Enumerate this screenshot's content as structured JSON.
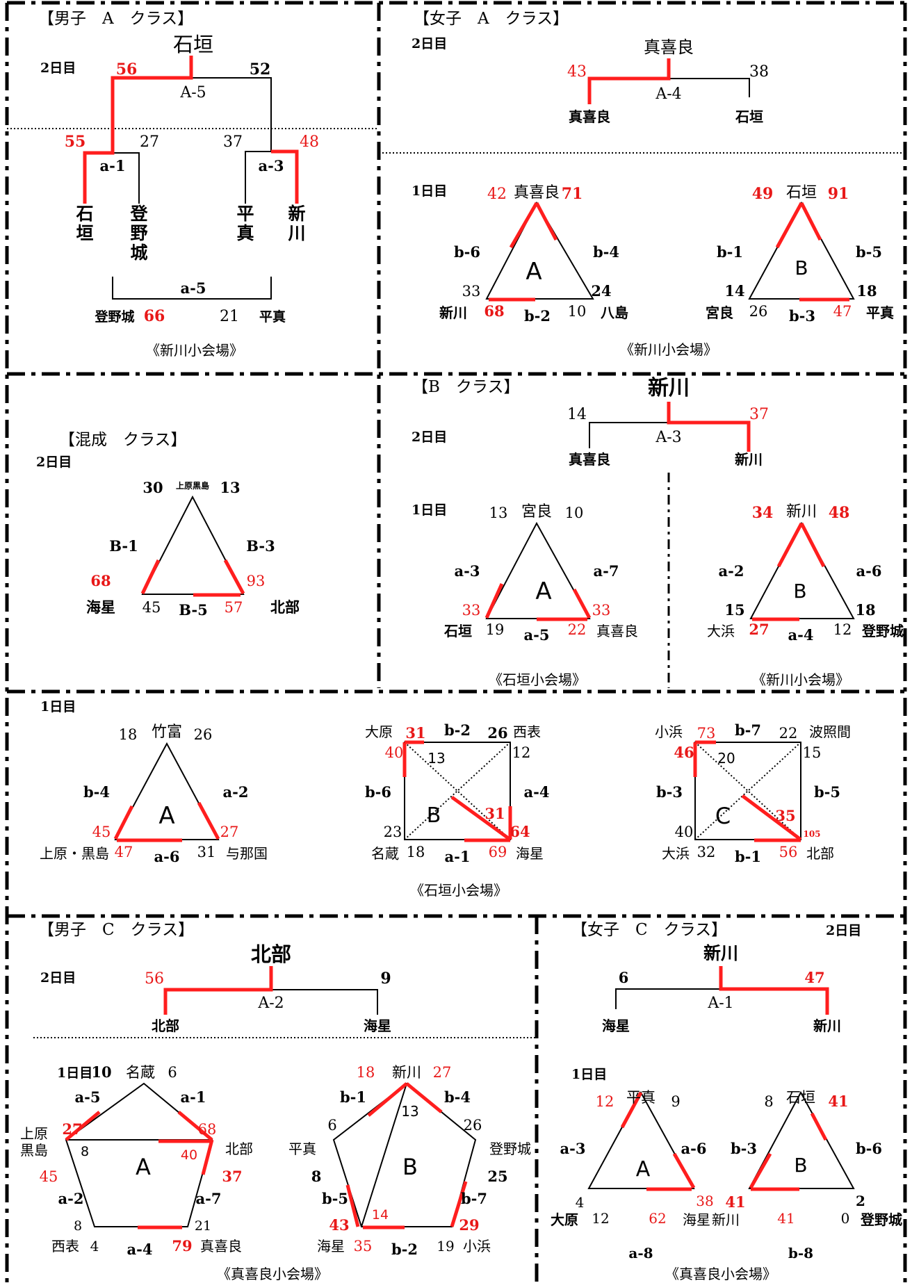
{
  "bA": {
    "title": "【男子　A　クラス】",
    "champ": "石垣",
    "day2": "2日目",
    "sL": "56",
    "sR": "52",
    "game": "A-5",
    "s1": "55",
    "s2": "27",
    "s3": "37",
    "s4": "48",
    "g1": "a-1",
    "g2": "a-3",
    "t1": "石",
    "t1b": "垣",
    "t2": "登",
    "t2b": "野",
    "t2c": "城",
    "t3": "平",
    "t3b": "真",
    "t4": "新",
    "t4b": "川",
    "g5": "a-5",
    "g5l": "登野城",
    "g5s1": "66",
    "g5s2": "21",
    "g5r": "平真",
    "venue": "《新川小会場》"
  },
  "gA": {
    "title": "【女子　A　クラス】",
    "day2": "2日目",
    "champ": "真喜良",
    "sL": "43",
    "sR": "38",
    "game": "A-4",
    "tL": "真喜良",
    "tR": "石垣",
    "day1": "1日目",
    "venue": "《新川小会場》",
    "A": {
      "top": "真喜良",
      "ts1": "42",
      "ts2": "71",
      "l": "b-6",
      "r": "b-4",
      "b": "b-2",
      "bl": "新川",
      "bls1": "33",
      "bls2": "68",
      "br": "八島",
      "brs1": "24",
      "brs2": "10",
      "c": "A"
    },
    "B": {
      "top": "石垣",
      "ts1": "49",
      "ts2": "91",
      "l": "b-1",
      "r": "b-5",
      "b": "b-3",
      "bl": "宮良",
      "bls1": "14",
      "bls2": "26",
      "br": "平真",
      "brs1": "18",
      "brs2": "47",
      "c": "B"
    }
  },
  "mix": {
    "title": "【混成　クラス】",
    "day2": "2日目",
    "top": "上原黒島",
    "ts1": "30",
    "ts2": "13",
    "l": "B-1",
    "r": "B-3",
    "b": "B-5",
    "bl": "海星",
    "bls1": "68",
    "bls2": "45",
    "br": "北部",
    "brs1": "93",
    "brs2": "57"
  },
  "bB": {
    "title": "【B　クラス】",
    "champ": "新川",
    "sL": "14",
    "sR": "37",
    "game": "A-3",
    "day2": "2日目",
    "tL": "真喜良",
    "tR": "新川",
    "day1": "1日目",
    "A": {
      "top": "宮良",
      "ts1": "13",
      "ts2": "10",
      "l": "a-3",
      "r": "a-7",
      "b": "a-5",
      "bl": "石垣",
      "bls1": "33",
      "bls2": "19",
      "br": "真喜良",
      "brs1": "33",
      "brs2": "22",
      "c": "A",
      "venue": "《石垣小会場》"
    },
    "B": {
      "top": "新川",
      "ts1": "34",
      "ts2": "48",
      "l": "a-2",
      "r": "a-6",
      "b": "a-4",
      "bl": "大浜",
      "bls1": "15",
      "bls2": "27",
      "br": "登野城",
      "brs1": "18",
      "brs2": "12",
      "c": "B",
      "venue": "《新川小会場》"
    }
  },
  "mid": {
    "day1": "1日目",
    "venue": "《石垣小会場》",
    "A": {
      "top": "竹富",
      "ts1": "18",
      "ts2": "26",
      "l": "b-4",
      "r": "a-2",
      "b": "a-6",
      "bl": "上原・黒島",
      "bls1": "45",
      "bls2": "47",
      "br": "与那国",
      "brs1": "27",
      "brs2": "31",
      "c": "A"
    },
    "B": {
      "tl": "大原",
      "tr": "西表",
      "bl": "名蔵",
      "br": "海星",
      "top": "b-2",
      "l": "b-6",
      "r": "a-4",
      "b": "a-1",
      "c": "B",
      "tls1": "31",
      "tls2": "40",
      "d1": "13",
      "trs1": "26",
      "trs2": "12",
      "bls1": "23",
      "bls2": "18",
      "brs1": "69",
      "brs2": "64",
      "d2": "31"
    },
    "C": {
      "tl": "小浜",
      "tr": "波照間",
      "bl": "大浜",
      "br": "北部",
      "top": "b-7",
      "l": "b-3",
      "r": "b-5",
      "b": "b-1",
      "c": "C",
      "tls1": "73",
      "tls2": "46",
      "d1": "20",
      "trs1": "22",
      "trs2": "15",
      "bls1": "40",
      "bls2": "32",
      "brs1": "56",
      "brs2": "105",
      "d2": "35"
    }
  },
  "bC": {
    "title": "【男子　C　クラス】",
    "champ": "北部",
    "day2": "2日目",
    "sL": "56",
    "sR": "9",
    "game": "A-2",
    "tL": "北部",
    "tR": "海星",
    "day1": "1日目",
    "venue": "《真喜良小会場》",
    "A": {
      "top": "名蔵",
      "ts1": "10",
      "ts2": "6",
      "ul": "a-5",
      "ur": "a-1",
      "l": "上原",
      "l2": "黒島",
      "r": "北部",
      "bl": "西表",
      "br": "真喜良",
      "ls1": "27",
      "ls2": "45",
      "rs1": "68",
      "rs2": "37",
      "bls1": "8",
      "bls2": "4",
      "brs1": "21",
      "brs2": "79",
      "d1": "8",
      "d2": "40",
      "ll": "a-2",
      "rr": "a-7",
      "b": "a-4",
      "c": "A"
    },
    "B": {
      "top": "新川",
      "ts1": "18",
      "ts2": "27",
      "ul": "b-1",
      "ur": "b-4",
      "l": "平真",
      "r": "登野城",
      "bl": "海星",
      "br": "小浜",
      "ls1": "6",
      "ls2": "8",
      "rs1": "26",
      "rs2": "25",
      "bls1": "43",
      "bls2": "35",
      "brs1": "29",
      "brs2": "19",
      "d1": "13",
      "d2": "14",
      "ll": "b-5",
      "rr": "b-7",
      "b": "b-2",
      "c": "B"
    }
  },
  "gC": {
    "title": "【女子　C　クラス】",
    "day2": "2日目",
    "champ": "新川",
    "sL": "6",
    "sR": "47",
    "game": "A-1",
    "tL": "海星",
    "tR": "新川",
    "day1": "1日目",
    "venue": "《真喜良小会場》",
    "A": {
      "top": "平真",
      "ts1": "12",
      "ts2": "9",
      "l": "a-3",
      "r": "a-6",
      "bl": "大原",
      "bls1": "4",
      "bls2": "12",
      "br": "海星",
      "brs1": "38",
      "brs2": "62",
      "c": "A",
      "b": "a-8"
    },
    "B": {
      "top": "石垣",
      "ts1": "8",
      "ts2": "41",
      "l": "b-3",
      "r": "b-6",
      "bl": "新川",
      "bls1": "41",
      "bls2": "41",
      "br": "登野城",
      "brs1": "2",
      "brs2": "0",
      "c": "B",
      "b": "b-8"
    }
  }
}
